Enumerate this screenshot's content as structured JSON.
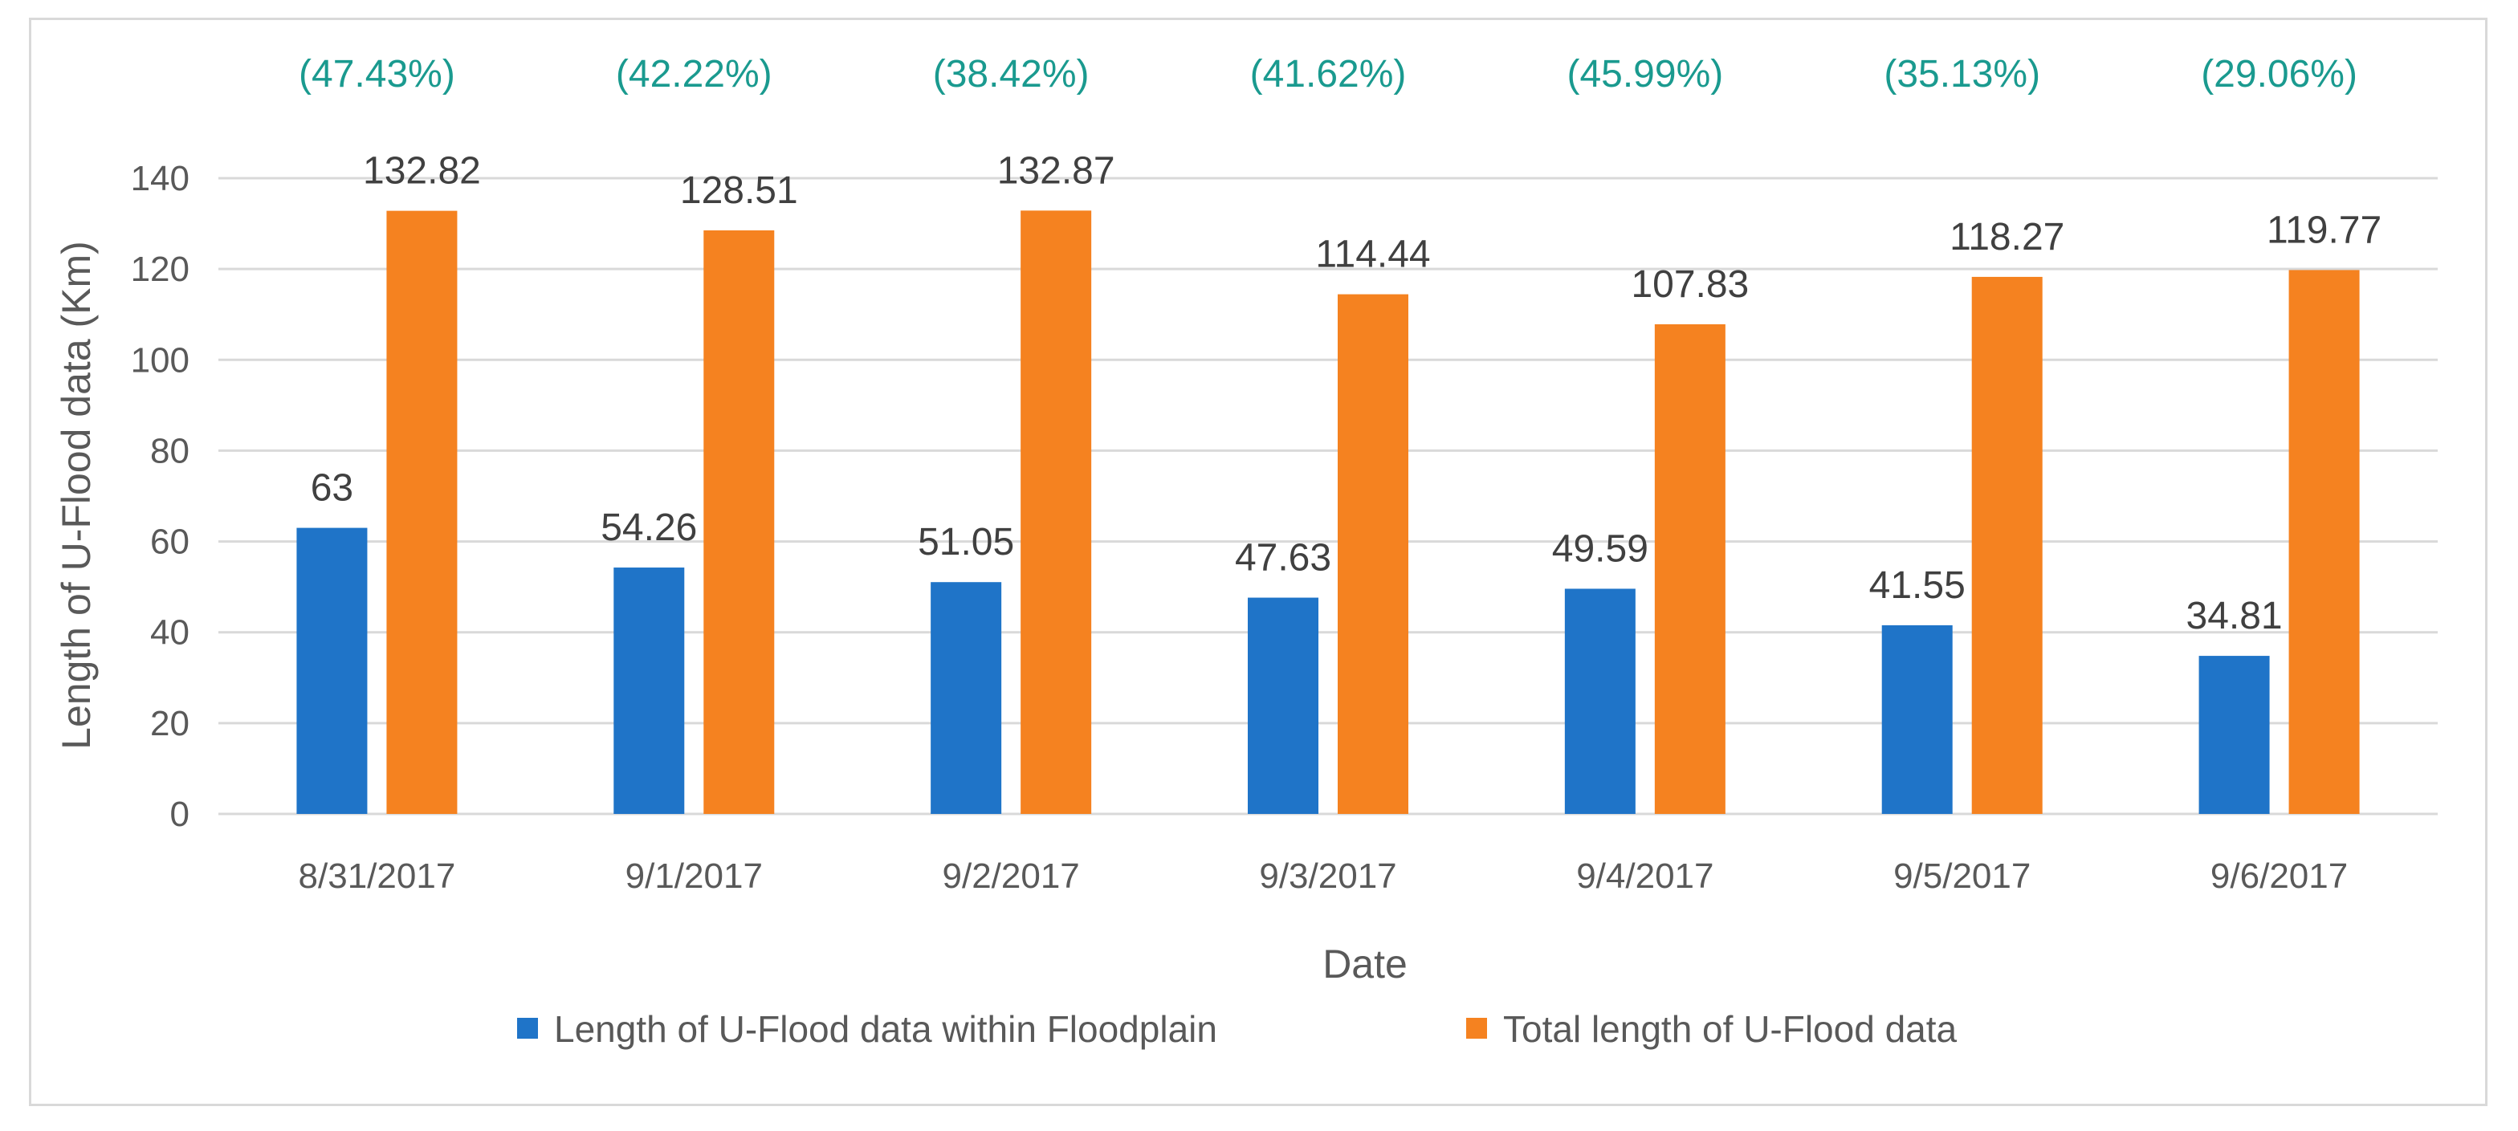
{
  "chart_data": {
    "type": "bar",
    "title": "",
    "xlabel": "Date",
    "ylabel": "Length of U-Flood data (Km)",
    "ylim": [
      0,
      140
    ],
    "yticks": [
      0,
      20,
      40,
      60,
      80,
      100,
      120,
      140
    ],
    "ytick_labels": [
      "0",
      "20",
      "40",
      "60",
      "80",
      "100",
      "120",
      "140"
    ],
    "grid": true,
    "legend_position": "bottom",
    "categories": [
      "8/31/2017",
      "9/1/2017",
      "9/2/2017",
      "9/3/2017",
      "9/4/2017",
      "9/5/2017",
      "9/6/2017"
    ],
    "series": [
      {
        "name": "Length of U-Flood data within Floodplain",
        "color": "#1f74c8",
        "values": [
          63,
          54.26,
          51.05,
          47.63,
          49.59,
          41.55,
          34.81
        ],
        "labels": [
          "63",
          "54.26",
          "51.05",
          "47.63",
          "49.59",
          "41.55",
          "34.81"
        ]
      },
      {
        "name": "Total length of U-Flood data",
        "color": "#f58220",
        "values": [
          132.82,
          128.51,
          132.87,
          114.44,
          107.83,
          118.27,
          119.77
        ],
        "labels": [
          "132.82",
          "128.51",
          "132.87",
          "114.44",
          "107.83",
          "118.27",
          "119.77"
        ]
      }
    ],
    "annotations": [
      "(47.43%)",
      "(42.22%)",
      "(38.42%)",
      "(41.62%)",
      "(45.99%)",
      "(35.13%)",
      "(29.06%)"
    ],
    "annotation_color": "#1a9a8f",
    "gridline_color": "#d9d9d9"
  }
}
